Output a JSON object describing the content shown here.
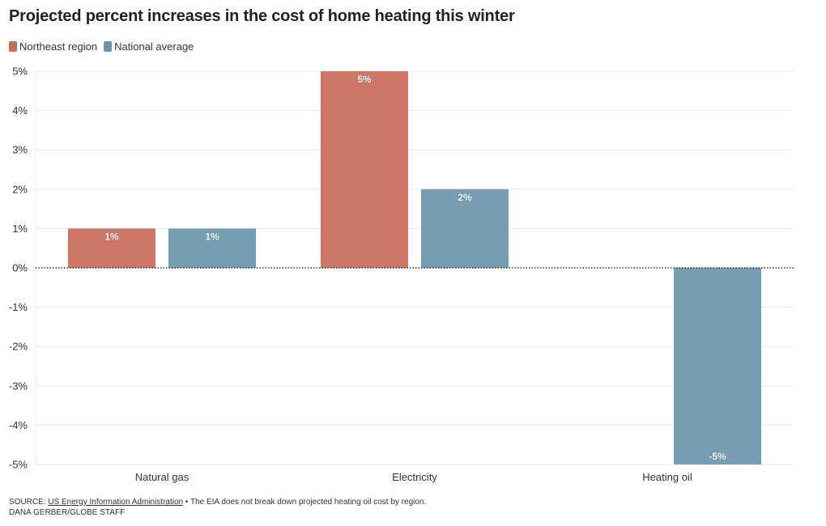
{
  "chart_data": {
    "type": "bar",
    "title": "Projected percent increases in the cost of home heating this winter",
    "categories": [
      "Natural gas",
      "Electricity",
      "Heating oil"
    ],
    "series": [
      {
        "name": "Northeast region",
        "color": "#c96b5a",
        "values": [
          1,
          5,
          null
        ],
        "labels": [
          "1%",
          "5%",
          ""
        ]
      },
      {
        "name": "National average",
        "color": "#6a95aa",
        "values": [
          1,
          2,
          -5
        ],
        "labels": [
          "1%",
          "2%",
          "-5%"
        ]
      }
    ],
    "ylim": [
      -5,
      5
    ],
    "yticks": [
      5,
      4,
      3,
      2,
      1,
      0,
      -1,
      -2,
      -3,
      -4,
      -5
    ],
    "ytick_labels": [
      "5%",
      "4%",
      "3%",
      "2%",
      "1%",
      "0%",
      "-1%",
      "-2%",
      "-3%",
      "-4%",
      "-5%"
    ],
    "grid": true,
    "legend_position": "top-left"
  },
  "footer": {
    "source_prefix": "SOURCE: ",
    "source_link": "US Energy Information Administration",
    "source_note": " • The EIA does not break down projected heating oil cost by region.",
    "credit": "DANA GERBER/GLOBE STAFF"
  }
}
